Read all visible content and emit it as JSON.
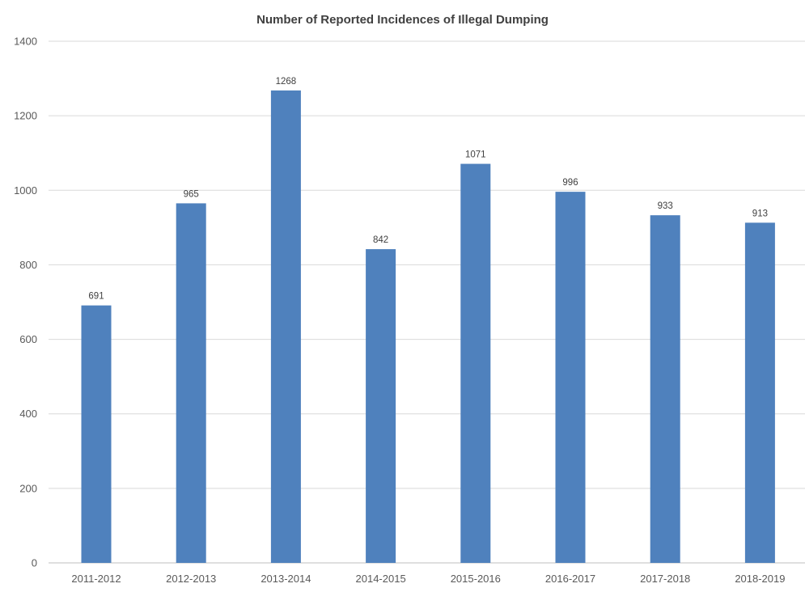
{
  "chart_data": {
    "type": "bar",
    "title": "Number of Reported Incidences of Illegal Dumping",
    "xlabel": "",
    "ylabel": "",
    "categories": [
      "2011-2012",
      "2012-2013",
      "2013-2014",
      "2014-2015",
      "2015-2016",
      "2016-2017",
      "2017-2018",
      "2018-2019"
    ],
    "values": [
      691,
      965,
      1268,
      842,
      1071,
      996,
      933,
      913
    ],
    "data_labels": [
      "691",
      "965",
      "1268",
      "842",
      "1071",
      "996",
      "933",
      "913"
    ],
    "ylim": [
      0,
      1400
    ],
    "yticks": [
      0,
      200,
      400,
      600,
      800,
      1000,
      1200,
      1400
    ],
    "ytick_labels": [
      "0",
      "200",
      "400",
      "600",
      "800",
      "1000",
      "1200",
      "1400"
    ],
    "grid": true,
    "legend": "none",
    "bar_color": "#4f81bd"
  }
}
